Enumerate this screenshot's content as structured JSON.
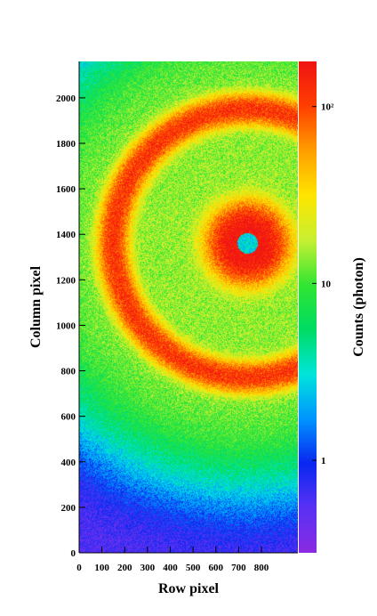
{
  "chart_data": {
    "type": "heatmap",
    "title": "",
    "xlabel": "Row pixel",
    "ylabel": "Column pixel",
    "colorbar_label": "Counts (photon)",
    "xlim": [
      0,
      960
    ],
    "ylim": [
      0,
      2160
    ],
    "x_ticks": [
      0,
      100,
      200,
      300,
      400,
      500,
      600,
      700,
      800
    ],
    "y_ticks": [
      0,
      200,
      400,
      600,
      800,
      1000,
      1200,
      1400,
      1600,
      1800,
      2000
    ],
    "colorbar_scale": "log",
    "colorbar_range": [
      0.3,
      180
    ],
    "colorbar_ticks": [
      {
        "value": 1,
        "label": "1"
      },
      {
        "value": 10,
        "label": "10"
      },
      {
        "value": 100,
        "label": "10²"
      }
    ],
    "features": {
      "beam_center": [
        740,
        1360
      ],
      "beam_stop_radius": 45,
      "central_spot_radius": 140,
      "ring_radius": 590,
      "ring_peak_counts": 110,
      "spot_peak_counts": 180,
      "background_counts": 0.55
    },
    "grid": false,
    "colors": {
      "colormap": [
        "#8a2be2",
        "#5a32f5",
        "#0a28f0",
        "#0096ff",
        "#00e6dc",
        "#00dc64",
        "#32e632",
        "#c8f032",
        "#ffe600",
        "#ffa000",
        "#ff4000",
        "#f01414"
      ]
    }
  }
}
